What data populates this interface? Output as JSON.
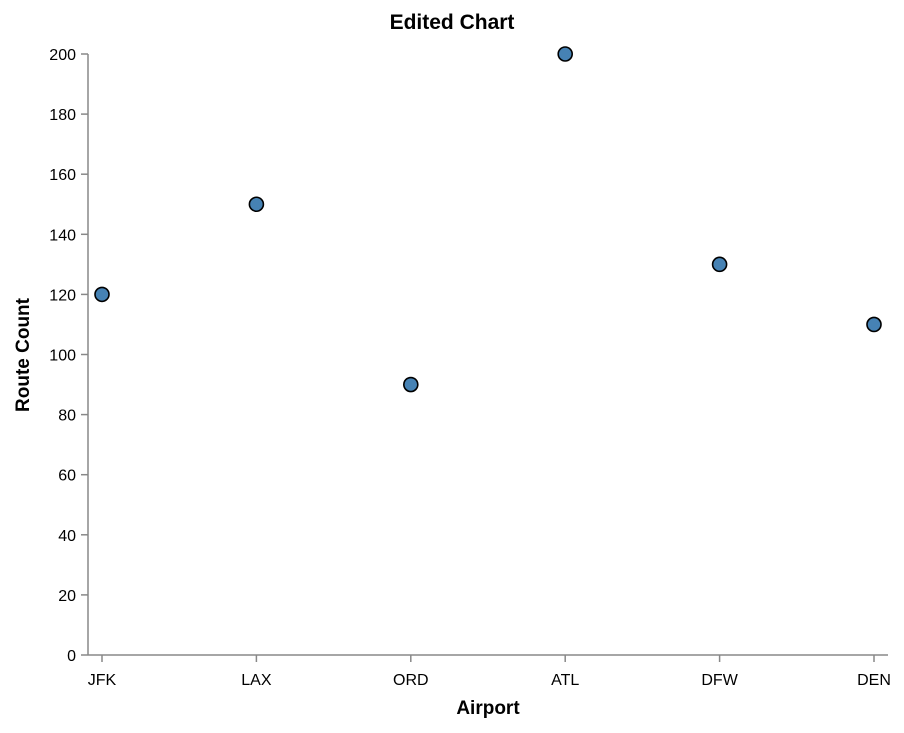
{
  "chart_data": {
    "type": "scatter",
    "title": "Edited Chart",
    "xlabel": "Airport",
    "ylabel": "Route Count",
    "categories": [
      "JFK",
      "LAX",
      "ORD",
      "ATL",
      "DFW",
      "DEN"
    ],
    "values": [
      120,
      150,
      90,
      200,
      130,
      110
    ],
    "ylim": [
      0,
      200
    ],
    "yticks": [
      0,
      20,
      40,
      60,
      80,
      100,
      120,
      140,
      160,
      180,
      200
    ],
    "grid": false,
    "point_color": "#4682b4",
    "point_stroke": "#000000",
    "axis_color": "#888888"
  }
}
